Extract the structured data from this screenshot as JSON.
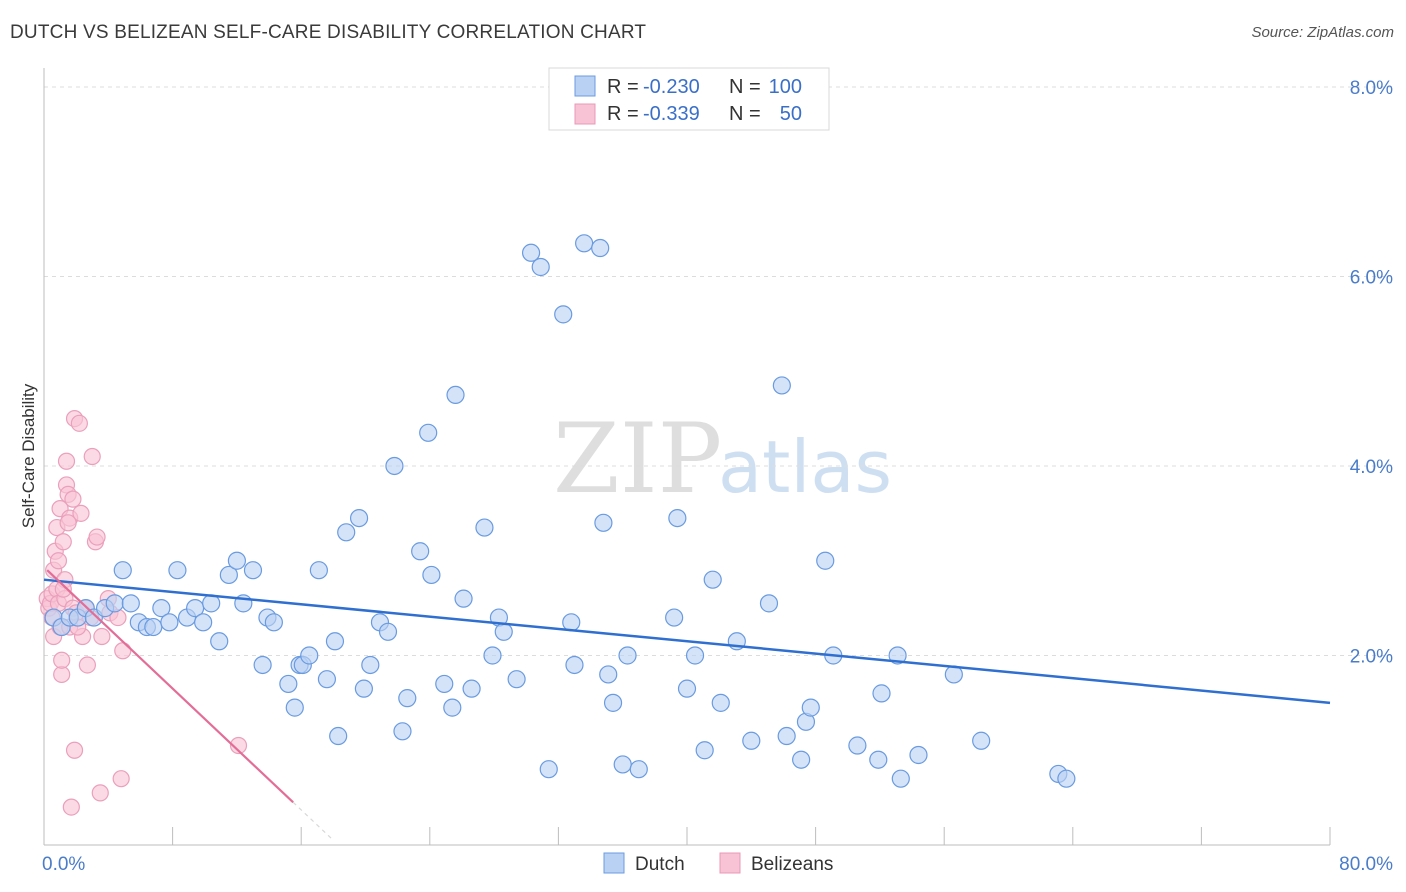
{
  "title": "DUTCH VS BELIZEAN SELF-CARE DISABILITY CORRELATION CHART",
  "source": "Source: ZipAtlas.com",
  "watermark": {
    "zip": "ZIP",
    "atlas": "atlas"
  },
  "colors": {
    "dutch": "#2f6fd0",
    "dutch_fill": "#b9d2f3",
    "belizean": "#e36d97",
    "belizean_fill": "#f8c3d5",
    "axis_text": "#4a7cc9"
  },
  "legend": {
    "rows": [
      {
        "r_label": "R =",
        "r_value": "-0.230",
        "n_label": "N =",
        "n_value": "100"
      },
      {
        "r_label": "R =",
        "r_value": "-0.339",
        "n_label": "N =",
        "n_value": "50"
      }
    ]
  },
  "chart_data": {
    "type": "scatter",
    "title": "DUTCH VS BELIZEAN SELF-CARE DISABILITY CORRELATION CHART",
    "xlabel": "",
    "ylabel": "Self-Care Disability",
    "xlim": [
      0,
      80
    ],
    "ylim": [
      0,
      8.2
    ],
    "y_ticks": [
      {
        "value": 2,
        "label": "2.0%"
      },
      {
        "value": 4,
        "label": "4.0%"
      },
      {
        "value": 6,
        "label": "6.0%"
      },
      {
        "value": 8,
        "label": "8.0%"
      }
    ],
    "x_tick_labels": [
      {
        "value": 0,
        "label": "0.0%"
      },
      {
        "value": 80,
        "label": "80.0%"
      }
    ],
    "grid": true,
    "series": [
      {
        "name": "Dutch",
        "r": -0.23,
        "n": 100,
        "trend": {
          "x": [
            0,
            80
          ],
          "y": [
            2.8,
            1.5
          ]
        },
        "points": [
          [
            0.6,
            2.4
          ],
          [
            1.1,
            2.3
          ],
          [
            1.6,
            2.4
          ],
          [
            2.1,
            2.4
          ],
          [
            2.6,
            2.5
          ],
          [
            3.1,
            2.4
          ],
          [
            3.8,
            2.5
          ],
          [
            4.4,
            2.55
          ],
          [
            4.9,
            2.9
          ],
          [
            5.4,
            2.55
          ],
          [
            5.9,
            2.35
          ],
          [
            6.4,
            2.3
          ],
          [
            6.8,
            2.3
          ],
          [
            7.3,
            2.5
          ],
          [
            7.8,
            2.35
          ],
          [
            8.3,
            2.9
          ],
          [
            8.9,
            2.4
          ],
          [
            9.4,
            2.5
          ],
          [
            9.9,
            2.35
          ],
          [
            10.4,
            2.55
          ],
          [
            10.9,
            2.15
          ],
          [
            11.5,
            2.85
          ],
          [
            12.0,
            3.0
          ],
          [
            12.4,
            2.55
          ],
          [
            13.0,
            2.9
          ],
          [
            13.6,
            1.9
          ],
          [
            13.9,
            2.4
          ],
          [
            14.3,
            2.35
          ],
          [
            15.2,
            1.7
          ],
          [
            15.6,
            1.45
          ],
          [
            15.9,
            1.9
          ],
          [
            16.1,
            1.9
          ],
          [
            16.5,
            2.0
          ],
          [
            17.1,
            2.9
          ],
          [
            17.6,
            1.75
          ],
          [
            18.1,
            2.15
          ],
          [
            18.3,
            1.15
          ],
          [
            18.8,
            3.3
          ],
          [
            19.6,
            3.45
          ],
          [
            19.9,
            1.65
          ],
          [
            20.3,
            1.9
          ],
          [
            20.9,
            2.35
          ],
          [
            21.4,
            2.25
          ],
          [
            21.8,
            4.0
          ],
          [
            22.3,
            1.2
          ],
          [
            22.6,
            1.55
          ],
          [
            23.4,
            3.1
          ],
          [
            23.9,
            4.35
          ],
          [
            24.1,
            2.85
          ],
          [
            24.9,
            1.7
          ],
          [
            25.4,
            1.45
          ],
          [
            25.6,
            4.75
          ],
          [
            26.1,
            2.6
          ],
          [
            26.6,
            1.65
          ],
          [
            27.4,
            3.35
          ],
          [
            27.9,
            2.0
          ],
          [
            28.3,
            2.4
          ],
          [
            28.6,
            2.25
          ],
          [
            29.4,
            1.75
          ],
          [
            30.3,
            6.25
          ],
          [
            30.9,
            6.1
          ],
          [
            31.4,
            0.8
          ],
          [
            32.3,
            5.6
          ],
          [
            32.8,
            2.35
          ],
          [
            33.0,
            1.9
          ],
          [
            33.6,
            6.35
          ],
          [
            34.6,
            6.3
          ],
          [
            34.8,
            3.4
          ],
          [
            35.1,
            1.8
          ],
          [
            35.4,
            1.5
          ],
          [
            36.0,
            0.85
          ],
          [
            36.3,
            2.0
          ],
          [
            37.0,
            0.8
          ],
          [
            39.2,
            2.4
          ],
          [
            39.4,
            3.45
          ],
          [
            40.0,
            1.65
          ],
          [
            40.5,
            2.0
          ],
          [
            41.1,
            1.0
          ],
          [
            41.6,
            2.8
          ],
          [
            42.1,
            1.5
          ],
          [
            43.1,
            2.15
          ],
          [
            44.0,
            1.1
          ],
          [
            45.1,
            2.55
          ],
          [
            45.9,
            4.85
          ],
          [
            46.2,
            1.15
          ],
          [
            47.1,
            0.9
          ],
          [
            47.4,
            1.3
          ],
          [
            47.7,
            1.45
          ],
          [
            48.6,
            3.0
          ],
          [
            49.1,
            2.0
          ],
          [
            50.6,
            1.05
          ],
          [
            51.9,
            0.9
          ],
          [
            52.1,
            1.6
          ],
          [
            53.1,
            2.0
          ],
          [
            53.3,
            0.7
          ],
          [
            54.4,
            0.95
          ],
          [
            56.6,
            1.8
          ],
          [
            58.3,
            1.1
          ],
          [
            63.1,
            0.75
          ],
          [
            63.6,
            0.7
          ]
        ]
      },
      {
        "name": "Belizeans",
        "r": -0.339,
        "n": 50,
        "trend": {
          "x": [
            0.2,
            15.5
          ],
          "y": [
            2.9,
            0.45
          ]
        },
        "trend_extension": {
          "x": [
            15.5,
            18.0
          ],
          "y": [
            0.45,
            0.05
          ]
        },
        "points": [
          [
            0.2,
            2.6
          ],
          [
            0.3,
            2.5
          ],
          [
            0.4,
            2.55
          ],
          [
            0.5,
            2.65
          ],
          [
            0.5,
            2.4
          ],
          [
            0.6,
            2.2
          ],
          [
            0.6,
            2.9
          ],
          [
            0.7,
            3.1
          ],
          [
            0.8,
            2.7
          ],
          [
            0.8,
            3.35
          ],
          [
            0.9,
            2.55
          ],
          [
            1.0,
            2.3
          ],
          [
            1.0,
            3.55
          ],
          [
            1.1,
            1.8
          ],
          [
            1.1,
            1.95
          ],
          [
            1.2,
            3.2
          ],
          [
            1.3,
            2.8
          ],
          [
            1.3,
            2.6
          ],
          [
            1.4,
            3.8
          ],
          [
            1.4,
            4.05
          ],
          [
            1.5,
            3.7
          ],
          [
            1.6,
            2.3
          ],
          [
            1.6,
            3.45
          ],
          [
            1.7,
            0.4
          ],
          [
            1.8,
            3.65
          ],
          [
            1.8,
            2.5
          ],
          [
            1.9,
            4.5
          ],
          [
            1.9,
            1.0
          ],
          [
            2.0,
            2.45
          ],
          [
            2.2,
            4.45
          ],
          [
            2.3,
            3.5
          ],
          [
            2.4,
            2.2
          ],
          [
            2.6,
            2.5
          ],
          [
            2.7,
            1.9
          ],
          [
            2.9,
            2.4
          ],
          [
            3.0,
            4.1
          ],
          [
            3.2,
            3.2
          ],
          [
            3.3,
            3.25
          ],
          [
            3.5,
            0.55
          ],
          [
            3.6,
            2.2
          ],
          [
            4.0,
            2.6
          ],
          [
            4.1,
            2.45
          ],
          [
            4.6,
            2.4
          ],
          [
            4.8,
            0.7
          ],
          [
            4.9,
            2.05
          ],
          [
            0.9,
            3.0
          ],
          [
            1.2,
            2.7
          ],
          [
            2.1,
            2.3
          ],
          [
            1.5,
            3.4
          ],
          [
            12.1,
            1.05
          ]
        ]
      }
    ]
  }
}
